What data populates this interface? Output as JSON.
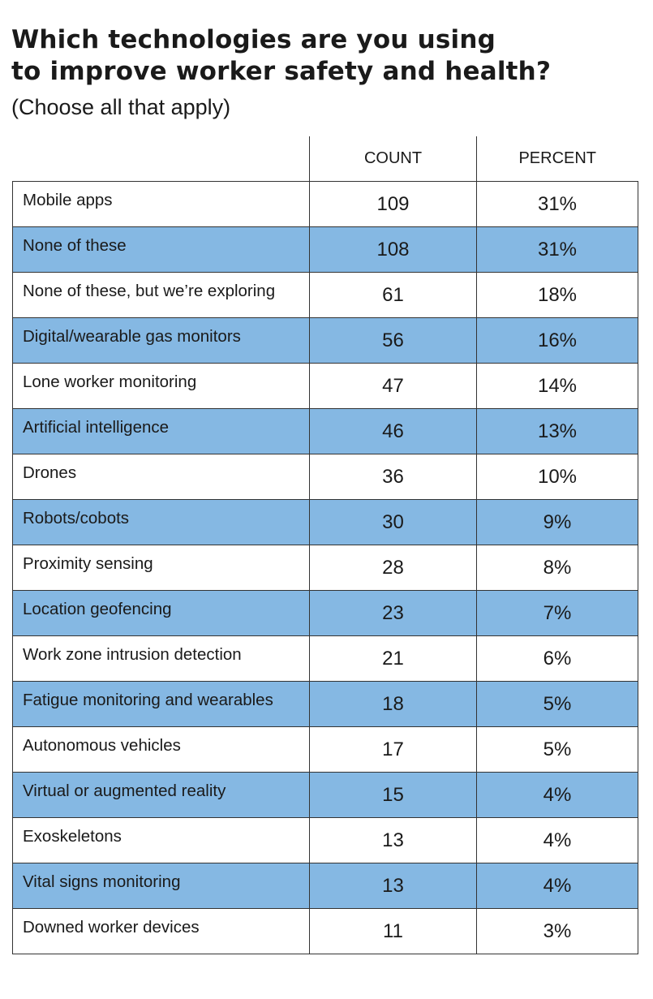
{
  "title": "Which technologies are you using\nto improve worker safety and health?",
  "subtitle": "(Choose all that apply)",
  "colors": {
    "shaded_row": "#85b8e3",
    "border": "#333333"
  },
  "chart_data": {
    "type": "table",
    "columns": [
      "",
      "COUNT",
      "PERCENT"
    ],
    "rows": [
      {
        "label": "Mobile apps",
        "count": "109",
        "percent": "31%"
      },
      {
        "label": "None of these",
        "count": "108",
        "percent": "31%"
      },
      {
        "label": "None of these, but we’re exploring",
        "count": "61",
        "percent": "18%"
      },
      {
        "label": "Digital/wearable gas monitors",
        "count": "56",
        "percent": "16%"
      },
      {
        "label": "Lone worker monitoring",
        "count": "47",
        "percent": "14%"
      },
      {
        "label": "Artificial intelligence",
        "count": "46",
        "percent": "13%"
      },
      {
        "label": "Drones",
        "count": "36",
        "percent": "10%"
      },
      {
        "label": "Robots/cobots",
        "count": "30",
        "percent": "9%"
      },
      {
        "label": "Proximity sensing",
        "count": "28",
        "percent": "8%"
      },
      {
        "label": "Location geofencing",
        "count": "23",
        "percent": "7%"
      },
      {
        "label": "Work zone intrusion detection",
        "count": "21",
        "percent": "6%"
      },
      {
        "label": "Fatigue monitoring and wearables",
        "count": "18",
        "percent": "5%"
      },
      {
        "label": "Autonomous vehicles",
        "count": "17",
        "percent": "5%"
      },
      {
        "label": "Virtual or augmented reality",
        "count": "15",
        "percent": "4%"
      },
      {
        "label": "Exoskeletons",
        "count": "13",
        "percent": "4%"
      },
      {
        "label": "Vital signs monitoring",
        "count": "13",
        "percent": "4%"
      },
      {
        "label": "Downed worker devices",
        "count": "11",
        "percent": "3%"
      }
    ]
  }
}
